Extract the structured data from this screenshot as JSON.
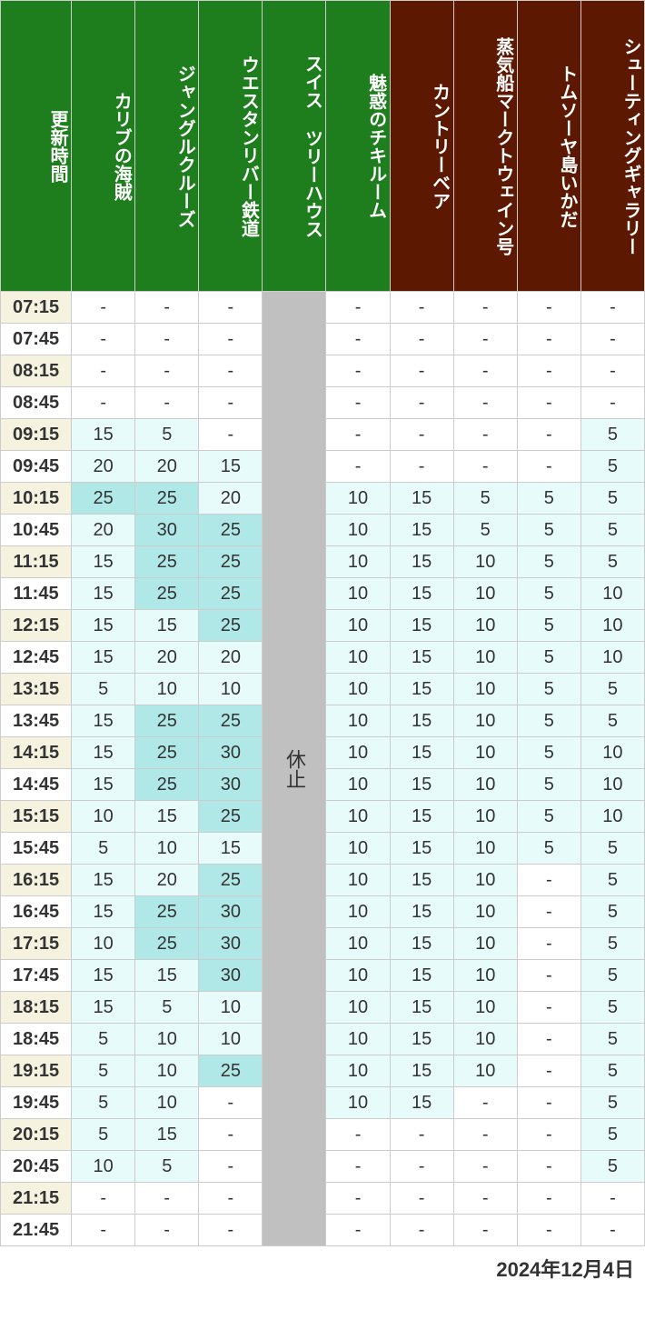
{
  "date_label": "2024年12月4日",
  "closed_label": "休止",
  "columns": [
    {
      "label": "更新時間",
      "class": "time-header"
    },
    {
      "label": "カリブの海賊",
      "class": "green-header"
    },
    {
      "label": "ジャングルクルーズ",
      "class": "green-header"
    },
    {
      "label": "ウエスタンリバー鉄道",
      "class": "green-header"
    },
    {
      "label": "スイス ツリーハウス",
      "class": "green-header"
    },
    {
      "label": "魅惑のチキルーム",
      "class": "green-header"
    },
    {
      "label": "カントリーベア",
      "class": "brown-header"
    },
    {
      "label": "蒸気船マークトウェイン号",
      "class": "brown-header"
    },
    {
      "label": "トムソーヤ島いかだ",
      "class": "brown-header"
    },
    {
      "label": "シューティングギャラリー",
      "class": "brown-header"
    }
  ],
  "thresholds": {
    "mint": 25,
    "light": 5
  },
  "closed_col_index": 4,
  "rows": [
    {
      "time": "07:15",
      "vals": [
        "-",
        "-",
        "-",
        "-",
        "-",
        "-",
        "-",
        "-"
      ]
    },
    {
      "time": "07:45",
      "vals": [
        "-",
        "-",
        "-",
        "-",
        "-",
        "-",
        "-",
        "-"
      ]
    },
    {
      "time": "08:15",
      "vals": [
        "-",
        "-",
        "-",
        "-",
        "-",
        "-",
        "-",
        "-"
      ]
    },
    {
      "time": "08:45",
      "vals": [
        "-",
        "-",
        "-",
        "-",
        "-",
        "-",
        "-",
        "-"
      ]
    },
    {
      "time": "09:15",
      "vals": [
        "15",
        "5",
        "-",
        "-",
        "-",
        "-",
        "-",
        "5"
      ]
    },
    {
      "time": "09:45",
      "vals": [
        "20",
        "20",
        "15",
        "-",
        "-",
        "-",
        "-",
        "5"
      ]
    },
    {
      "time": "10:15",
      "vals": [
        "25",
        "25",
        "20",
        "10",
        "15",
        "5",
        "5",
        "5"
      ]
    },
    {
      "time": "10:45",
      "vals": [
        "20",
        "30",
        "25",
        "10",
        "15",
        "5",
        "5",
        "5"
      ]
    },
    {
      "time": "11:15",
      "vals": [
        "15",
        "25",
        "25",
        "10",
        "15",
        "10",
        "5",
        "5"
      ]
    },
    {
      "time": "11:45",
      "vals": [
        "15",
        "25",
        "25",
        "10",
        "15",
        "10",
        "5",
        "10"
      ]
    },
    {
      "time": "12:15",
      "vals": [
        "15",
        "15",
        "25",
        "10",
        "15",
        "10",
        "5",
        "10"
      ]
    },
    {
      "time": "12:45",
      "vals": [
        "15",
        "20",
        "20",
        "10",
        "15",
        "10",
        "5",
        "10"
      ]
    },
    {
      "time": "13:15",
      "vals": [
        "5",
        "10",
        "10",
        "10",
        "15",
        "10",
        "5",
        "5"
      ]
    },
    {
      "time": "13:45",
      "vals": [
        "15",
        "25",
        "25",
        "10",
        "15",
        "10",
        "5",
        "5"
      ]
    },
    {
      "time": "14:15",
      "vals": [
        "15",
        "25",
        "30",
        "10",
        "15",
        "10",
        "5",
        "10"
      ]
    },
    {
      "time": "14:45",
      "vals": [
        "15",
        "25",
        "30",
        "10",
        "15",
        "10",
        "5",
        "10"
      ]
    },
    {
      "time": "15:15",
      "vals": [
        "10",
        "15",
        "25",
        "10",
        "15",
        "10",
        "5",
        "10"
      ]
    },
    {
      "time": "15:45",
      "vals": [
        "5",
        "10",
        "15",
        "10",
        "15",
        "10",
        "5",
        "5"
      ]
    },
    {
      "time": "16:15",
      "vals": [
        "15",
        "20",
        "25",
        "10",
        "15",
        "10",
        "-",
        "5"
      ]
    },
    {
      "time": "16:45",
      "vals": [
        "15",
        "25",
        "30",
        "10",
        "15",
        "10",
        "-",
        "5"
      ]
    },
    {
      "time": "17:15",
      "vals": [
        "10",
        "25",
        "30",
        "10",
        "15",
        "10",
        "-",
        "5"
      ]
    },
    {
      "time": "17:45",
      "vals": [
        "15",
        "15",
        "30",
        "10",
        "15",
        "10",
        "-",
        "5"
      ]
    },
    {
      "time": "18:15",
      "vals": [
        "15",
        "5",
        "10",
        "10",
        "15",
        "10",
        "-",
        "5"
      ]
    },
    {
      "time": "18:45",
      "vals": [
        "5",
        "10",
        "10",
        "10",
        "15",
        "10",
        "-",
        "5"
      ]
    },
    {
      "time": "19:15",
      "vals": [
        "5",
        "10",
        "25",
        "10",
        "15",
        "10",
        "-",
        "5"
      ]
    },
    {
      "time": "19:45",
      "vals": [
        "5",
        "10",
        "-",
        "10",
        "15",
        "-",
        "-",
        "5"
      ]
    },
    {
      "time": "20:15",
      "vals": [
        "5",
        "15",
        "-",
        "-",
        "-",
        "-",
        "-",
        "5"
      ]
    },
    {
      "time": "20:45",
      "vals": [
        "10",
        "5",
        "-",
        "-",
        "-",
        "-",
        "-",
        "5"
      ]
    },
    {
      "time": "21:15",
      "vals": [
        "-",
        "-",
        "-",
        "-",
        "-",
        "-",
        "-",
        "-"
      ]
    },
    {
      "time": "21:45",
      "vals": [
        "-",
        "-",
        "-",
        "-",
        "-",
        "-",
        "-",
        "-"
      ]
    }
  ]
}
